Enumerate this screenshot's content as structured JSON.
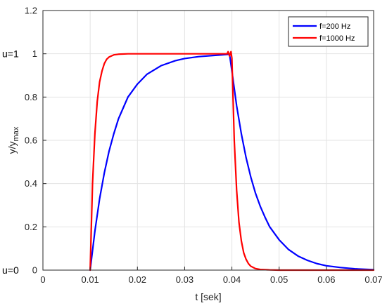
{
  "chart_data": {
    "type": "line",
    "xlabel": "t [sek]",
    "ylabel_main": "y/y",
    "ylabel_sub": "max",
    "xlim": [
      0,
      0.07
    ],
    "ylim": [
      0,
      1.2
    ],
    "x_ticks": [
      0,
      0.01,
      0.02,
      0.03,
      0.04,
      0.05,
      0.06,
      0.07
    ],
    "x_tick_labels": [
      "0",
      "0.01",
      "0.02",
      "0.03",
      "0.04",
      "0.05",
      "0.06",
      "0.07"
    ],
    "y_ticks": [
      0,
      0.2,
      0.4,
      0.6,
      0.8,
      1,
      1.2
    ],
    "y_tick_labels": [
      "0",
      "0.2",
      "0.4",
      "0.6",
      "0.8",
      "1",
      "1.2"
    ],
    "grid": true,
    "legend_position": "top-right",
    "annotations": [
      {
        "text": "u=1",
        "y": 1
      },
      {
        "text": "u=0",
        "y": 0
      }
    ],
    "series": [
      {
        "name": "f=200 Hz",
        "color": "#0000ff",
        "x": [
          0.01,
          0.011,
          0.012,
          0.013,
          0.014,
          0.015,
          0.016,
          0.017,
          0.018,
          0.02,
          0.022,
          0.025,
          0.028,
          0.03,
          0.033,
          0.036,
          0.038,
          0.0395,
          0.04,
          0.041,
          0.042,
          0.043,
          0.044,
          0.045,
          0.046,
          0.047,
          0.048,
          0.05,
          0.052,
          0.054,
          0.056,
          0.058,
          0.06,
          0.063,
          0.066,
          0.07
        ],
        "y": [
          0,
          0.18,
          0.33,
          0.45,
          0.55,
          0.63,
          0.7,
          0.75,
          0.8,
          0.86,
          0.905,
          0.945,
          0.968,
          0.978,
          0.987,
          0.992,
          0.995,
          0.998,
          0.92,
          0.76,
          0.63,
          0.52,
          0.43,
          0.355,
          0.295,
          0.245,
          0.2,
          0.14,
          0.095,
          0.065,
          0.045,
          0.03,
          0.02,
          0.012,
          0.006,
          0.002
        ]
      },
      {
        "name": "f=1000 Hz",
        "color": "#ff0000",
        "x": [
          0.01,
          0.0105,
          0.011,
          0.0115,
          0.012,
          0.0125,
          0.013,
          0.0135,
          0.014,
          0.015,
          0.016,
          0.018,
          0.02,
          0.025,
          0.03,
          0.035,
          0.038,
          0.039,
          0.0392,
          0.0395,
          0.0398,
          0.04,
          0.0405,
          0.041,
          0.0415,
          0.042,
          0.0425,
          0.043,
          0.0435,
          0.044,
          0.045,
          0.046,
          0.048,
          0.05,
          0.06,
          0.07
        ],
        "y": [
          0,
          0.4,
          0.63,
          0.78,
          0.87,
          0.92,
          0.955,
          0.975,
          0.985,
          0.995,
          0.998,
          1.0,
          1.0,
          1.0,
          1.0,
          1.0,
          1.0,
          1.0,
          1.01,
          0.99,
          1.01,
          0.98,
          0.6,
          0.37,
          0.22,
          0.135,
          0.08,
          0.05,
          0.03,
          0.018,
          0.007,
          0.003,
          0.001,
          0.0,
          0.0,
          0.0
        ]
      }
    ]
  }
}
